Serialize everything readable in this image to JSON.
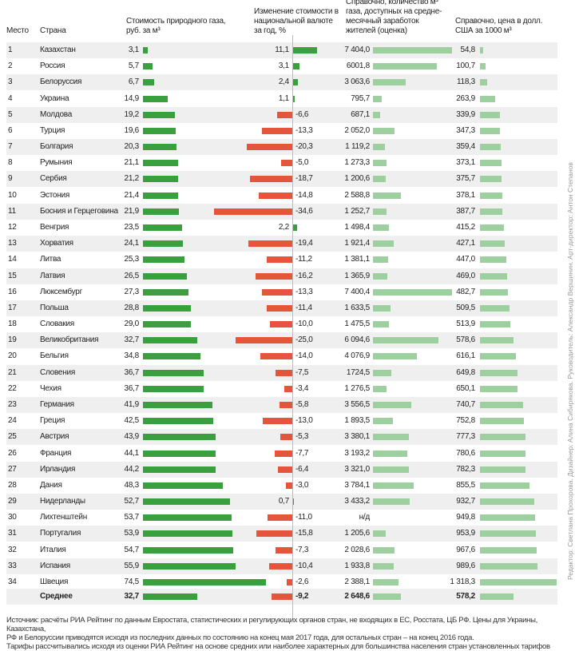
{
  "chart_data": {
    "type": "table",
    "headers": {
      "rank": "Место",
      "country": "Страна",
      "price": "Стоимость природного газа, руб. за м³",
      "change": "Изменение стоимости в национальной валюте за год, %",
      "afford": "Справочно, количество м³ газа, доступных на средне-месячный заработок жителей (оценка)",
      "usd": "Справочно, цена в долл. США за 1000 м³"
    },
    "rows": [
      {
        "rank": "1",
        "country": "Казахстан",
        "price": 3.1,
        "price_t": "3,1",
        "change": 11.1,
        "change_t": "11,1",
        "afford": 7404.0,
        "afford_t": "7 404,0",
        "usd": 54.8,
        "usd_t": "54,8"
      },
      {
        "rank": "2",
        "country": "Россия",
        "price": 5.7,
        "price_t": "5,7",
        "change": 3.1,
        "change_t": "3,1",
        "afford": 6001.8,
        "afford_t": "6001,8",
        "usd": 100.7,
        "usd_t": "100,7"
      },
      {
        "rank": "3",
        "country": "Белоруссия",
        "price": 6.7,
        "price_t": "6,7",
        "change": 2.4,
        "change_t": "2,4",
        "afford": 3063.6,
        "afford_t": "3 063,6",
        "usd": 118.3,
        "usd_t": "118,3"
      },
      {
        "rank": "4",
        "country": "Украина",
        "price": 14.9,
        "price_t": "14,9",
        "change": 1.1,
        "change_t": "1,1",
        "afford": 795.7,
        "afford_t": "795,7",
        "usd": 263.9,
        "usd_t": "263,9"
      },
      {
        "rank": "5",
        "country": "Молдова",
        "price": 19.2,
        "price_t": "19,2",
        "change": -6.6,
        "change_t": "-6,6",
        "afford": 687.1,
        "afford_t": "687,1",
        "usd": 339.9,
        "usd_t": "339,9"
      },
      {
        "rank": "6",
        "country": "Турция",
        "price": 19.6,
        "price_t": "19,6",
        "change": -13.3,
        "change_t": "-13,3",
        "afford": 2052.0,
        "afford_t": "2 052,0",
        "usd": 347.3,
        "usd_t": "347,3"
      },
      {
        "rank": "7",
        "country": "Болгария",
        "price": 20.3,
        "price_t": "20,3",
        "change": -20.3,
        "change_t": "-20,3",
        "afford": 1119.2,
        "afford_t": "1 119,2",
        "usd": 359.4,
        "usd_t": "359,4"
      },
      {
        "rank": "8",
        "country": "Румыния",
        "price": 21.1,
        "price_t": "21,1",
        "change": -5.0,
        "change_t": "-5,0",
        "afford": 1273.3,
        "afford_t": "1 273,3",
        "usd": 373.1,
        "usd_t": "373,1"
      },
      {
        "rank": "9",
        "country": "Сербия",
        "price": 21.2,
        "price_t": "21,2",
        "change": -18.7,
        "change_t": "-18,7",
        "afford": 1200.6,
        "afford_t": "1 200,6",
        "usd": 375.7,
        "usd_t": "375,7"
      },
      {
        "rank": "10",
        "country": "Эстония",
        "price": 21.4,
        "price_t": "21,4",
        "change": -14.8,
        "change_t": "-14,8",
        "afford": 2588.8,
        "afford_t": "2 588,8",
        "usd": 378.1,
        "usd_t": "378,1"
      },
      {
        "rank": "11",
        "country": "Босния и Герцеговина",
        "price": 21.9,
        "price_t": "21,9",
        "change": -34.6,
        "change_t": "-34,6",
        "afford": 1252.7,
        "afford_t": "1 252,7",
        "usd": 387.7,
        "usd_t": "387,7"
      },
      {
        "rank": "12",
        "country": "Венгрия",
        "price": 23.5,
        "price_t": "23,5",
        "change": 2.2,
        "change_t": "2,2",
        "afford": 1498.4,
        "afford_t": "1 498,4",
        "usd": 415.2,
        "usd_t": "415,2"
      },
      {
        "rank": "13",
        "country": "Хорватия",
        "price": 24.1,
        "price_t": "24,1",
        "change": -19.4,
        "change_t": "-19,4",
        "afford": 1921.4,
        "afford_t": "1 921,4",
        "usd": 427.1,
        "usd_t": "427,1"
      },
      {
        "rank": "14",
        "country": "Литва",
        "price": 25.3,
        "price_t": "25,3",
        "change": -11.2,
        "change_t": "-11,2",
        "afford": 1381.1,
        "afford_t": "1 381,1",
        "usd": 447.0,
        "usd_t": "447,0"
      },
      {
        "rank": "15",
        "country": "Латвия",
        "price": 26.5,
        "price_t": "26,5",
        "change": -16.2,
        "change_t": "-16,2",
        "afford": 1365.9,
        "afford_t": "1 365,9",
        "usd": 469.0,
        "usd_t": "469,0"
      },
      {
        "rank": "16",
        "country": "Люксембург",
        "price": 27.3,
        "price_t": "27,3",
        "change": -13.3,
        "change_t": "-13,3",
        "afford": 7400.4,
        "afford_t": "7 400,4",
        "usd": 482.7,
        "usd_t": "482,7"
      },
      {
        "rank": "17",
        "country": "Польша",
        "price": 28.8,
        "price_t": "28,8",
        "change": -11.4,
        "change_t": "-11,4",
        "afford": 1633.5,
        "afford_t": "1 633,5",
        "usd": 509.5,
        "usd_t": "509,5"
      },
      {
        "rank": "18",
        "country": "Словакия",
        "price": 29.0,
        "price_t": "29,0",
        "change": -10.0,
        "change_t": "-10,0",
        "afford": 1475.5,
        "afford_t": "1 475,5",
        "usd": 513.9,
        "usd_t": "513,9"
      },
      {
        "rank": "19",
        "country": "Великобритания",
        "price": 32.7,
        "price_t": "32,7",
        "change": -25.0,
        "change_t": "-25,0",
        "afford": 6094.6,
        "afford_t": "6 094,6",
        "usd": 578.6,
        "usd_t": "578,6"
      },
      {
        "rank": "20",
        "country": "Бельгия",
        "price": 34.8,
        "price_t": "34,8",
        "change": -14.0,
        "change_t": "-14,0",
        "afford": 4076.9,
        "afford_t": "4 076,9",
        "usd": 616.1,
        "usd_t": "616,1"
      },
      {
        "rank": "21",
        "country": "Словения",
        "price": 36.7,
        "price_t": "36,7",
        "change": -7.5,
        "change_t": "-7,5",
        "afford": 1724.5,
        "afford_t": "1724,5",
        "usd": 649.8,
        "usd_t": "649,8"
      },
      {
        "rank": "22",
        "country": "Чехия",
        "price": 36.7,
        "price_t": "36,7",
        "change": -3.4,
        "change_t": "-3,4",
        "afford": 1276.5,
        "afford_t": "1 276,5",
        "usd": 650.1,
        "usd_t": "650,1"
      },
      {
        "rank": "23",
        "country": "Германия",
        "price": 41.9,
        "price_t": "41,9",
        "change": -5.8,
        "change_t": "-5,8",
        "afford": 3556.5,
        "afford_t": "3 556,5",
        "usd": 740.7,
        "usd_t": "740,7"
      },
      {
        "rank": "24",
        "country": "Греция",
        "price": 42.5,
        "price_t": "42,5",
        "change": -13.0,
        "change_t": "-13,0",
        "afford": 1893.5,
        "afford_t": "1 893,5",
        "usd": 752.8,
        "usd_t": "752,8"
      },
      {
        "rank": "25",
        "country": "Австрия",
        "price": 43.9,
        "price_t": "43,9",
        "change": -5.3,
        "change_t": "-5,3",
        "afford": 3380.1,
        "afford_t": "3 380,1",
        "usd": 777.3,
        "usd_t": "777,3"
      },
      {
        "rank": "26",
        "country": "Франция",
        "price": 44.1,
        "price_t": "44,1",
        "change": -7.7,
        "change_t": "-7,7",
        "afford": 3193.2,
        "afford_t": "3 193,2",
        "usd": 780.6,
        "usd_t": "780,6"
      },
      {
        "rank": "27",
        "country": "Ирландия",
        "price": 44.2,
        "price_t": "44,2",
        "change": -6.4,
        "change_t": "-6,4",
        "afford": 3321.0,
        "afford_t": "3 321,0",
        "usd": 782.3,
        "usd_t": "782,3"
      },
      {
        "rank": "28",
        "country": "Дания",
        "price": 48.3,
        "price_t": "48,3",
        "change": -3.0,
        "change_t": "-3,0",
        "afford": 3784.1,
        "afford_t": "3 784,1",
        "usd": 855.5,
        "usd_t": "855,5"
      },
      {
        "rank": "29",
        "country": "Нидерланды",
        "price": 52.7,
        "price_t": "52,7",
        "change": 0.7,
        "change_t": "0,7",
        "afford": 3433.2,
        "afford_t": "3 433,2",
        "usd": 932.7,
        "usd_t": "932,7"
      },
      {
        "rank": "30",
        "country": "Лихтенштейн",
        "price": 53.7,
        "price_t": "53,7",
        "change": -11.0,
        "change_t": "-11,0",
        "afford": null,
        "afford_t": "н/д",
        "usd": 949.8,
        "usd_t": "949,8"
      },
      {
        "rank": "31",
        "country": "Португалия",
        "price": 53.9,
        "price_t": "53,9",
        "change": -15.8,
        "change_t": "-15,8",
        "afford": 1205.6,
        "afford_t": "1 205,6",
        "usd": 953.9,
        "usd_t": "953,9"
      },
      {
        "rank": "32",
        "country": "Италия",
        "price": 54.7,
        "price_t": "54,7",
        "change": -7.3,
        "change_t": "-7,3",
        "afford": 2028.6,
        "afford_t": "2 028,6",
        "usd": 967.6,
        "usd_t": "967,6"
      },
      {
        "rank": "33",
        "country": "Испания",
        "price": 55.9,
        "price_t": "55,9",
        "change": -10.4,
        "change_t": "-10,4",
        "afford": 1933.8,
        "afford_t": "1 933,8",
        "usd": 989.6,
        "usd_t": "989,6"
      },
      {
        "rank": "34",
        "country": "Швеция",
        "price": 74.5,
        "price_t": "74,5",
        "change": -2.6,
        "change_t": "-2,6",
        "afford": 2388.1,
        "afford_t": "2 388,1",
        "usd": 1318.3,
        "usd_t": "1 318,3"
      }
    ],
    "average": {
      "rank": "",
      "country": "Среднее",
      "price": 32.7,
      "price_t": "32,7",
      "change": -9.2,
      "change_t": "-9,2",
      "afford": 2648.6,
      "afford_t": "2 648,6",
      "usd": 578.2,
      "usd_t": "578,2"
    },
    "colors": {
      "price": "#3a9f3e",
      "change_pos": "#3a9f3e",
      "change_neg": "#e5553b",
      "afford": "#9dcf9f",
      "usd": "#9dcf9f"
    }
  },
  "footer": {
    "line1": "Источник: расчёты РИА Рейтинг по данным Евростата, статистических и регулирующих органов стран, не входящих в ЕС, Росстата, ЦБ РФ. Цены для Украины, Казахстана,",
    "line2": "РФ и Белоруссии приводятся исходя из последних данных по состоянию на конец мая 2017 года, для остальных стран – на конец 2016 года.",
    "line3": "Тарифы рассчитывались исходя из оценки РИА Рейтинг на основе средних или наиболее характерных для большинства населения стран установленных тарифов"
  },
  "credits": "Редактор: Светлана Прохорова. Дизайнер: Алина Сибирякова. Руководитель: Александр Вершинин. Арт-директор: Антон Степанов"
}
